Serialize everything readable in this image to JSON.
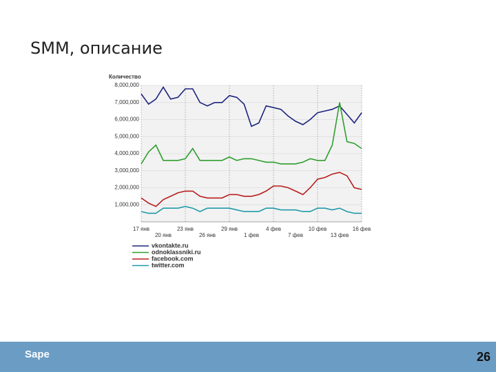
{
  "header": {
    "title": "SMM, описание"
  },
  "chart_data": {
    "type": "line",
    "y_label": "Количество",
    "categories": [
      "17 янв",
      null,
      null,
      "20 янв",
      null,
      null,
      "23 янв",
      null,
      null,
      "26 янв",
      null,
      null,
      "29 янв",
      null,
      null,
      "1 фев",
      null,
      null,
      "4 фев",
      null,
      null,
      "7 фев",
      null,
      null,
      "10 фев",
      null,
      null,
      "13 фев",
      null,
      null,
      "16 фев"
    ],
    "ylim": [
      0,
      8000000
    ],
    "yticks": [
      {
        "value": 1000000,
        "label": "1,000,000"
      },
      {
        "value": 2000000,
        "label": "2,000,000"
      },
      {
        "value": 3000000,
        "label": "3,000,000"
      },
      {
        "value": 4000000,
        "label": "4,000,000"
      },
      {
        "value": 5000000,
        "label": "5,000,000"
      },
      {
        "value": 6000000,
        "label": "6,000,000"
      },
      {
        "value": 7000000,
        "label": "7,000,000"
      },
      {
        "value": 8000000,
        "label": "8,000,000"
      }
    ],
    "grid": true,
    "series": [
      {
        "name": "vkontakte.ru",
        "color": "#1a237e",
        "values": [
          7500000,
          6900000,
          7200000,
          7900000,
          7200000,
          7300000,
          7800000,
          7800000,
          7000000,
          6800000,
          7000000,
          7000000,
          7400000,
          7300000,
          6900000,
          5600000,
          5800000,
          6800000,
          6700000,
          6600000,
          6200000,
          5900000,
          5700000,
          6000000,
          6400000,
          6500000,
          6600000,
          6800000,
          6300000,
          5800000,
          6400000
        ]
      },
      {
        "name": "odnoklassniki.ru",
        "color": "#2e9e2e",
        "values": [
          3400000,
          4100000,
          4500000,
          3600000,
          3600000,
          3600000,
          3700000,
          4300000,
          3600000,
          3600000,
          3600000,
          3600000,
          3800000,
          3600000,
          3700000,
          3700000,
          3600000,
          3500000,
          3500000,
          3400000,
          3400000,
          3400000,
          3500000,
          3700000,
          3600000,
          3600000,
          4500000,
          7000000,
          4700000,
          4600000,
          4300000
        ]
      },
      {
        "name": "facebook.com",
        "color": "#b71c1c",
        "values": [
          1400000,
          1100000,
          900000,
          1300000,
          1500000,
          1700000,
          1800000,
          1800000,
          1500000,
          1400000,
          1400000,
          1400000,
          1600000,
          1600000,
          1500000,
          1500000,
          1600000,
          1800000,
          2100000,
          2100000,
          2000000,
          1800000,
          1600000,
          2000000,
          2500000,
          2600000,
          2800000,
          2900000,
          2700000,
          2000000,
          1900000
        ]
      },
      {
        "name": "twitter.com",
        "color": "#1e9aa8",
        "values": [
          600000,
          500000,
          500000,
          800000,
          800000,
          800000,
          900000,
          800000,
          600000,
          800000,
          800000,
          800000,
          800000,
          700000,
          600000,
          600000,
          600000,
          800000,
          800000,
          700000,
          700000,
          700000,
          600000,
          600000,
          800000,
          800000,
          700000,
          800000,
          600000,
          500000,
          500000
        ]
      }
    ]
  },
  "footer": {
    "logo": "Sape",
    "page_number": "26"
  }
}
